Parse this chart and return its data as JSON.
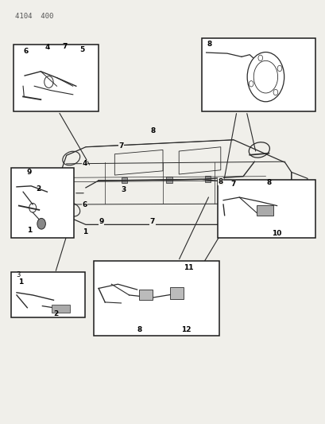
{
  "title": "4104  400",
  "bg_color": "#f0efea",
  "line_color": "#2a2a2a",
  "box_color": "#1a1a1a",
  "fig_width": 4.1,
  "fig_height": 5.33,
  "dpi": 100
}
